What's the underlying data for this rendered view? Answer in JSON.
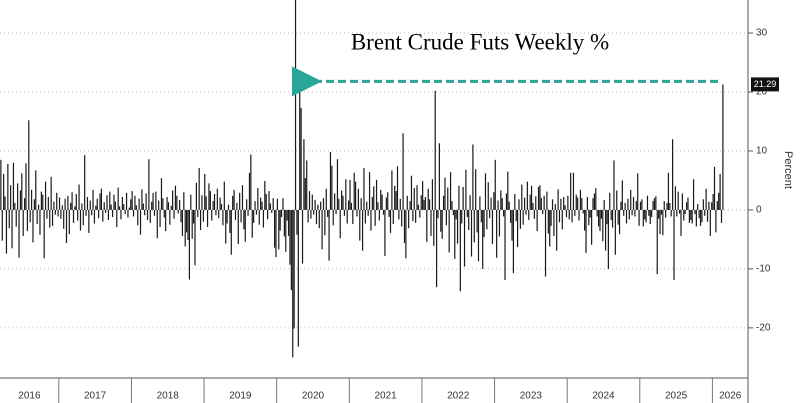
{
  "chart_data": {
    "type": "bar",
    "title": "Brent Crude Futs Weekly %",
    "y_label": "Percent",
    "color": "#1a1a1a",
    "categories": [
      "2016",
      "2017",
      "2018",
      "2019",
      "2020",
      "2021",
      "2022",
      "2023",
      "2024",
      "2025",
      "2026"
    ],
    "values": [
      [
        8.5,
        -5.2,
        6.1,
        2.3,
        -7.4,
        7.8,
        -3.1,
        4.2,
        -6.5,
        8.0,
        1.2,
        -2.8,
        4.5,
        -8.1,
        3.3,
        6.2,
        -4.4,
        2.0,
        7.9,
        -3.6,
        15.2,
        -2.1,
        3.4,
        -5.5,
        1.8,
        6.7,
        -2.4,
        0.9,
        -4.2,
        3.1,
        2.6,
        -8.2,
        4.8,
        -1.5,
        2.2,
        -3.0,
        5.6,
        -2.7,
        1.4,
        -0.8,
        2.9,
        -1.1
      ],
      [
        2.1,
        -1.5,
        0.8,
        -3.2,
        1.9,
        -5.6,
        2.4,
        -4.1,
        1.2,
        3.0,
        -2.2,
        0.6,
        2.7,
        -1.8,
        4.3,
        -3.5,
        1.1,
        -2.6,
        9.3,
        -1.0,
        2.2,
        -3.9,
        1.6,
        -0.9,
        3.4,
        -2.3,
        0.7,
        1.9,
        -1.4,
        2.8,
        3.6,
        -2.0,
        1.3,
        -0.5,
        2.5,
        -1.7,
        3.1,
        0.9,
        -1.2,
        2.6,
        1.4,
        -2.9,
        3.8,
        0.6,
        -1.6,
        2.2,
        1.0,
        -0.7,
        2.9,
        -1.3,
        0.4,
        1.8
      ],
      [
        3.2,
        -1.1,
        2.4,
        0.8,
        -2.6,
        1.9,
        -4.2,
        3.5,
        1.1,
        -0.9,
        2.8,
        -1.7,
        8.6,
        -2.2,
        1.4,
        2.9,
        -1.0,
        3.1,
        -4.8,
        1.6,
        -2.9,
        5.4,
        2.0,
        -1.3,
        -3.6,
        2.2,
        1.3,
        -2.5,
        0.7,
        3.3,
        -1.5,
        4.1,
        2.4,
        -0.6,
        1.7,
        -2.1,
        -4.4,
        3.0,
        -6.2,
        -3.8,
        -5.1,
        -11.8,
        2.6,
        -4.9,
        -2.3,
        -9.4,
        4.6,
        -1.2,
        7.1,
        -3.4,
        2.5,
        -2.0
      ],
      [
        6.1,
        2.3,
        -2.9,
        4.5,
        3.2,
        -1.8,
        1.5,
        2.7,
        -0.9,
        3.6,
        -1.4,
        2.1,
        1.0,
        -2.6,
        4.8,
        -5.7,
        -2.3,
        0.9,
        -3.9,
        -7.6,
        2.4,
        3.4,
        -1.7,
        1.2,
        -5.8,
        2.9,
        -2.1,
        4.2,
        -3.3,
        -5.4,
        1.8,
        -1.0,
        6.3,
        9.4,
        -4.7,
        -2.2,
        1.5,
        -0.8,
        3.7,
        -2.5,
        2.1,
        1.4,
        -3.0,
        4.9,
        2.7,
        -1.6,
        3.2,
        1.1,
        -0.5,
        2.0,
        -6.4,
        -8.0
      ],
      [
        1.9,
        -6.7,
        -3.5,
        -1.2,
        2.0,
        -4.5,
        -7.1,
        -1.8,
        -4.4,
        -9.3,
        -13.6,
        -25.0,
        -20.1,
        36.0,
        -4.2,
        -23.2,
        23.3,
        17.3,
        -9.1,
        12.0,
        5.4,
        8.4,
        -2.1,
        3.2,
        -1.5,
        2.6,
        -0.8,
        1.7,
        -2.4,
        0.9,
        -3.1,
        1.4,
        -6.7,
        2.0,
        -4.3,
        3.6,
        -1.2,
        -8.6,
        9.8,
        7.5,
        -2.6,
        2.8,
        -0.7,
        8.6,
        1.9,
        -4.8,
        3.3,
        2.4,
        -1.0,
        5.2,
        -2.3,
        1.6
      ],
      [
        5.1,
        1.2,
        -2.4,
        6.3,
        4.8,
        -1.1,
        3.6,
        -5.2,
        2.0,
        -6.9,
        7.1,
        -2.3,
        1.4,
        -1.0,
        6.4,
        -3.5,
        2.2,
        4.0,
        -2.7,
        5.1,
        1.3,
        -1.8,
        3.4,
        2.6,
        -0.8,
        -7.8,
        2.1,
        3.0,
        -1.2,
        -3.9,
        6.7,
        -2.4,
        4.1,
        3.2,
        7.4,
        -1.6,
        1.9,
        -2.8,
        13.0,
        -5.6,
        -8.2,
        2.4,
        -3.1,
        1.5,
        5.8,
        -1.9,
        3.7,
        -2.2,
        4.2,
        0.9,
        -1.3,
        2.5
      ],
      [
        4.9,
        1.7,
        2.2,
        -5.4,
        3.6,
        1.8,
        -4.4,
        5.2,
        -6.1,
        20.2,
        -13.1,
        -1.4,
        11.3,
        -3.7,
        -4.9,
        2.4,
        5.5,
        -2.6,
        3.8,
        -7.2,
        6.4,
        1.5,
        -0.9,
        -8.3,
        -1.6,
        -5.7,
        4.1,
        -13.8,
        -2.3,
        3.9,
        -9.6,
        6.8,
        -1.2,
        -3.4,
        2.5,
        -7.9,
        11.1,
        -5.5,
        6.9,
        -3.8,
        -8.7,
        2.3,
        -2.1,
        -10.0,
        -4.6,
        6.2,
        -3.3,
        4.7,
        -1.4,
        2.1,
        -5.8,
        3.0
      ],
      [
        8.5,
        -8.1,
        1.6,
        -4.5,
        3.3,
        2.0,
        -1.1,
        -11.9,
        2.8,
        6.5,
        1.4,
        -2.2,
        -5.2,
        -10.7,
        2.7,
        -1.9,
        -6.3,
        1.8,
        -3.2,
        4.3,
        -2.5,
        2.1,
        -0.8,
        4.8,
        -1.7,
        2.6,
        4.1,
        1.2,
        -1.5,
        2.3,
        -3.6,
        3.9,
        4.2,
        2.0,
        -0.7,
        2.4,
        -11.3,
        3.1,
        -4.0,
        -6.2,
        -2.7,
        1.8,
        -4.4,
        1.0,
        -6.9,
        3.5,
        -2.1,
        1.9,
        -3.3,
        2.2,
        0.8,
        -1.2
      ],
      [
        2.4,
        -1.6,
        6.3,
        -2.1,
        6.3,
        -1.0,
        2.6,
        2.1,
        -1.8,
        3.4,
        2.0,
        -0.6,
        -3.5,
        -7.3,
        2.2,
        -2.6,
        -1.3,
        -5.9,
        2.0,
        2.8,
        3.7,
        -1.1,
        -2.8,
        -3.6,
        -1.5,
        -5.3,
        1.7,
        -6.9,
        -2.4,
        -10.0,
        2.9,
        -1.7,
        -3.0,
        8.4,
        -7.6,
        3.3,
        -2.5,
        -4.1,
        1.4,
        5.0,
        -1.0,
        1.2,
        -2.3,
        1.9,
        -1.6,
        3.4,
        -0.9,
        2.2,
        -1.1,
        1.5,
        6.2,
        -2.7
      ],
      [
        1.4,
        1.8,
        -2.8,
        -1.6,
        -2.1,
        2.4,
        -1.0,
        -2.4,
        -1.2,
        1.5,
        2.0,
        2.3,
        -10.9,
        -1.5,
        -4.1,
        -0.8,
        -4.3,
        1.5,
        -1.3,
        1.2,
        6.3,
        1.2,
        -1.1,
        12.0,
        -11.9,
        4.0,
        -1.1,
        3.1,
        -0.6,
        -4.4,
        2.8,
        -1.8,
        -0.7,
        1.3,
        2.1,
        -2.2,
        -1.7,
        -2.3,
        5.2,
        -0.7,
        -2.8,
        1.0,
        -1.4,
        -2.7,
        -2.1,
        1.8,
        -1.0,
        3.6,
        -2.0,
        1.4,
        -4.4,
        1.3
      ],
      [
        2.7,
        7.3,
        -3.8,
        1.5,
        2.9,
        6.1,
        -2.2,
        21.29
      ]
    ],
    "xlim": [
      2016.19,
      2026.49
    ],
    "ylim": [
      -28.5,
      35.6
    ],
    "yticks": [
      -20,
      -10,
      0,
      10,
      20,
      30
    ],
    "grid": true
  }
}
